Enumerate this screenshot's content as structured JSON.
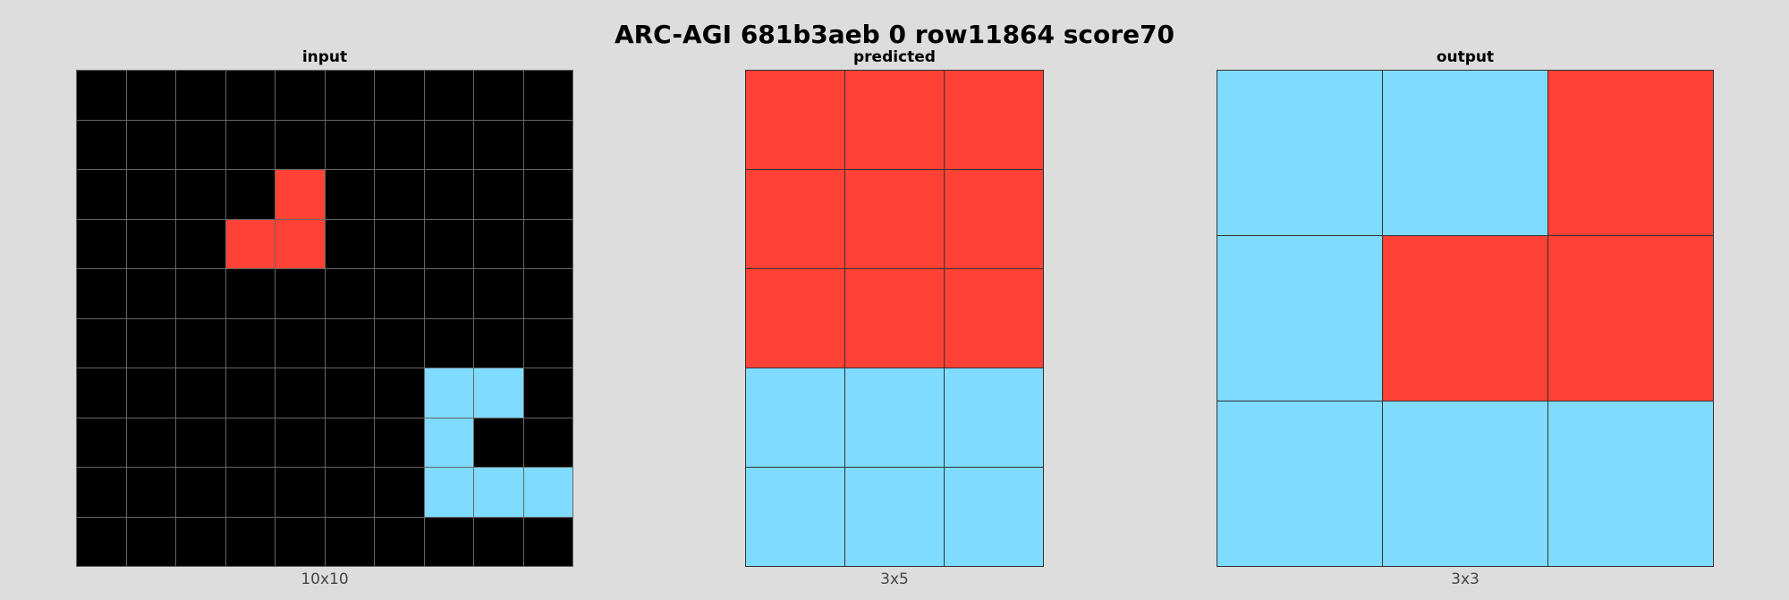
{
  "title": "ARC-AGI 681b3aeb 0 row11864 score70",
  "palette": {
    "0": "#000000",
    "2": "#ff4136",
    "8": "#7fdbff"
  },
  "panels": {
    "input": {
      "label": "input",
      "size_label": "10x10",
      "grid": [
        [
          0,
          0,
          0,
          0,
          0,
          0,
          0,
          0,
          0,
          0
        ],
        [
          0,
          0,
          0,
          0,
          0,
          0,
          0,
          0,
          0,
          0
        ],
        [
          0,
          0,
          0,
          0,
          2,
          0,
          0,
          0,
          0,
          0
        ],
        [
          0,
          0,
          0,
          2,
          2,
          0,
          0,
          0,
          0,
          0
        ],
        [
          0,
          0,
          0,
          0,
          0,
          0,
          0,
          0,
          0,
          0
        ],
        [
          0,
          0,
          0,
          0,
          0,
          0,
          0,
          0,
          0,
          0
        ],
        [
          0,
          0,
          0,
          0,
          0,
          0,
          0,
          8,
          8,
          0
        ],
        [
          0,
          0,
          0,
          0,
          0,
          0,
          0,
          8,
          0,
          0
        ],
        [
          0,
          0,
          0,
          0,
          0,
          0,
          0,
          8,
          8,
          8
        ],
        [
          0,
          0,
          0,
          0,
          0,
          0,
          0,
          0,
          0,
          0
        ]
      ]
    },
    "predicted": {
      "label": "predicted",
      "size_label": "3x5",
      "grid": [
        [
          2,
          2,
          2
        ],
        [
          2,
          2,
          2
        ],
        [
          2,
          2,
          2
        ],
        [
          8,
          8,
          8
        ],
        [
          8,
          8,
          8
        ]
      ]
    },
    "output": {
      "label": "output",
      "size_label": "3x3",
      "grid": [
        [
          8,
          8,
          2
        ],
        [
          8,
          2,
          2
        ],
        [
          8,
          8,
          8
        ]
      ]
    }
  }
}
